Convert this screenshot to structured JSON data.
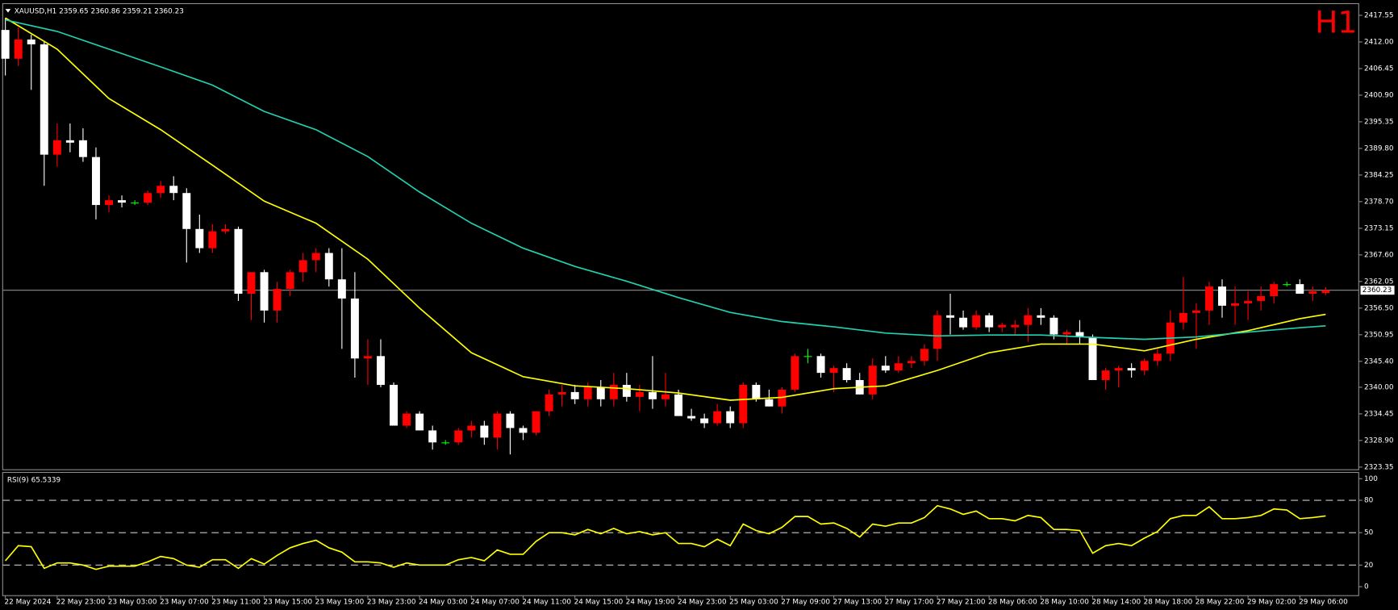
{
  "chart_data": [
    {
      "type": "candlestick",
      "title": "XAUUSD,H1",
      "badge": "H1",
      "categories": [
        "22 May 2024",
        null,
        null,
        null,
        "22 May 23:00",
        null,
        null,
        null,
        "23 May 03:00",
        null,
        null,
        null,
        "23 May 07:00",
        null,
        null,
        null,
        "23 May 11:00",
        null,
        null,
        null,
        "23 May 15:00",
        null,
        null,
        null,
        "23 May 19:00",
        null,
        null,
        null,
        "23 May 23:00",
        null,
        null,
        null,
        "24 May 03:00",
        null,
        null,
        null,
        "24 May 07:00",
        null,
        null,
        null,
        "24 May 11:00",
        null,
        null,
        null,
        "24 May 15:00",
        null,
        null,
        null,
        "24 May 19:00",
        null,
        null,
        null,
        "24 May 23:00",
        null,
        null,
        null,
        "25 May 03:00",
        null,
        null,
        null,
        "27 May 09:00",
        null,
        null,
        null,
        "27 May 13:00",
        null,
        null,
        null,
        "27 May 17:00",
        null,
        null,
        null,
        "27 May 21:00",
        null,
        null,
        null,
        "28 May 06:00",
        null,
        null,
        null,
        "28 May 10:00",
        null,
        null,
        null,
        "28 May 14:00",
        null,
        null,
        null,
        "28 May 18:00",
        null,
        null,
        null,
        "28 May 22:00",
        null,
        null,
        null,
        "29 May 02:00",
        null,
        null,
        null,
        "29 May 06:00",
        null,
        null
      ],
      "open": [
        2414.5,
        2408.5,
        2412.5,
        2411.5,
        2388.5,
        2391.5,
        2391.5,
        2388,
        2378,
        2379,
        2378.5,
        2378.5,
        2380.5,
        2382,
        2380.5,
        2373,
        2369,
        2372.5,
        2373,
        2359.5,
        2364,
        2356,
        2360.5,
        2364,
        2366.5,
        2368,
        2362.5,
        2358.5,
        2346,
        2346.5,
        2340.5,
        2332,
        2334.5,
        2331,
        2328.5,
        2328.5,
        2331,
        2332,
        2329.5,
        2334.5,
        2331.5,
        2330.5,
        2335,
        2338.5,
        2339,
        2337.5,
        2340,
        2337.5,
        2340.5,
        2338,
        2339,
        2337.5,
        2338.5,
        2334,
        2333.5,
        2332.5,
        2335,
        2332.5,
        2340.5,
        2337.5,
        2336,
        2339.5,
        2346.5,
        2346.5,
        2343,
        2344,
        2341.5,
        2338.5,
        2344.5,
        2343.5,
        2345,
        2345.5,
        2348,
        2355,
        2354.5,
        2352.5,
        2355,
        2352.5,
        2352.5,
        2353,
        2355,
        2354.5,
        2351,
        2351.5,
        2350.5,
        2341.5,
        2343.5,
        2344,
        2343.5,
        2345.5,
        2347,
        2353.5,
        2355.5,
        2356,
        2361,
        2357,
        2357.5,
        2358,
        2359,
        2361.5,
        2361.5,
        2359.5,
        2359.65
      ],
      "high": [
        2417,
        2415,
        2413.5,
        2412,
        2395,
        2395,
        2394,
        2390,
        2380,
        2380,
        2379,
        2381,
        2383,
        2384,
        2381.5,
        2376,
        2374,
        2374,
        2373.5,
        2364,
        2364.5,
        2362,
        2364.5,
        2368,
        2369,
        2369,
        2369,
        2364,
        2350,
        2350,
        2341,
        2335,
        2335,
        2332,
        2329,
        2331.5,
        2333,
        2333,
        2335,
        2335,
        2332,
        2335,
        2339.5,
        2340.5,
        2340.5,
        2341,
        2341.5,
        2343,
        2343,
        2340.5,
        2346.5,
        2343,
        2339.5,
        2335.5,
        2334.5,
        2336.5,
        2336,
        2341,
        2341,
        2339.5,
        2340,
        2347,
        2348,
        2347,
        2344.5,
        2345,
        2343,
        2346,
        2346.5,
        2346.5,
        2346.5,
        2349,
        2356,
        2359.5,
        2356,
        2356,
        2355.5,
        2353.5,
        2354,
        2356.5,
        2356.5,
        2355,
        2352,
        2354,
        2351,
        2344,
        2344.5,
        2345,
        2346,
        2348,
        2356,
        2363,
        2357.5,
        2362,
        2362.5,
        2361,
        2360,
        2361,
        2362,
        2362,
        2362.5,
        2361,
        2360.86
      ],
      "low": [
        2405,
        2407,
        2402,
        2382,
        2386,
        2389,
        2387,
        2375,
        2376.5,
        2377.5,
        2378,
        2378,
        2379.5,
        2379,
        2366,
        2368,
        2368,
        2372,
        2358,
        2354,
        2353.5,
        2353.5,
        2359,
        2362,
        2364,
        2361,
        2348,
        2342,
        2340.5,
        2340,
        2332,
        2331.5,
        2331,
        2327,
        2328,
        2328,
        2329.5,
        2328,
        2327,
        2326,
        2329,
        2330,
        2334,
        2336,
        2336.5,
        2336,
        2336,
        2336,
        2337,
        2335,
        2335.5,
        2336,
        2334,
        2333,
        2331.5,
        2332,
        2331.5,
        2331.5,
        2337,
        2336,
        2334.5,
        2339,
        2345,
        2342,
        2339,
        2341,
        2338.5,
        2337.5,
        2343,
        2343,
        2344,
        2344.5,
        2345.5,
        2351,
        2352,
        2352,
        2351.5,
        2351.5,
        2351,
        2349.5,
        2353,
        2350,
        2349,
        2349,
        2341.5,
        2339.5,
        2340,
        2342,
        2342.5,
        2344.5,
        2345.5,
        2352,
        2348,
        2353,
        2354.5,
        2353,
        2354,
        2356,
        2357.5,
        2361,
        2359.5,
        2358,
        2359.21
      ],
      "close": [
        2408.5,
        2412.5,
        2411.5,
        2388.5,
        2391.5,
        2391,
        2388,
        2378,
        2379,
        2378.5,
        2378.5,
        2380.5,
        2382,
        2380.5,
        2373,
        2369,
        2372.5,
        2373,
        2359.5,
        2364,
        2356,
        2360.5,
        2364,
        2366.5,
        2368,
        2362.5,
        2358.5,
        2346,
        2346.5,
        2340.5,
        2332,
        2334.5,
        2331,
        2328.5,
        2328.5,
        2331,
        2332,
        2329.5,
        2334.5,
        2331.5,
        2330.5,
        2335,
        2338.5,
        2339,
        2337.5,
        2340,
        2337.5,
        2340.5,
        2338,
        2339,
        2337.5,
        2338.5,
        2334,
        2333.5,
        2332.5,
        2335,
        2332.5,
        2340.5,
        2337.5,
        2336,
        2339.5,
        2346.5,
        2346.5,
        2343,
        2344,
        2341.5,
        2338.5,
        2344.5,
        2343.5,
        2345,
        2345.5,
        2348,
        2355,
        2354.5,
        2352.5,
        2355,
        2352.5,
        2353,
        2353,
        2355,
        2354.5,
        2351,
        2351.5,
        2350.5,
        2341.5,
        2343.5,
        2344,
        2343.5,
        2345.5,
        2347,
        2353.5,
        2355.5,
        2356,
        2361,
        2357,
        2357.5,
        2358,
        2359,
        2361.5,
        2361.5,
        2359.5,
        2360,
        2360.23
      ],
      "up_color": "#ff0000",
      "down_color": "#ffffff",
      "doji_color": "#00ff00",
      "price_line_color": "#8c8c8c",
      "lines": [
        {
          "color": "#ffff00",
          "x": [
            0,
            4,
            8,
            12,
            16,
            20,
            24,
            28,
            32,
            36,
            40,
            44,
            48,
            52,
            56,
            60,
            64,
            68,
            72,
            76,
            80,
            84,
            88,
            92,
            96,
            100,
            102
          ],
          "values": [
            2417.0,
            2410.5,
            2400.2,
            2393.7,
            2386.3,
            2378.8,
            2374.2,
            2366.7,
            2356.5,
            2347.2,
            2342.2,
            2340.3,
            2339.7,
            2338.8,
            2337.3,
            2337.9,
            2339.7,
            2340.3,
            2343.5,
            2347.2,
            2349.0,
            2349.0,
            2347.6,
            2350.0,
            2351.8,
            2354.3,
            2355.2
          ]
        },
        {
          "color": "#20d2b0",
          "x": [
            0,
            4,
            8,
            12,
            16,
            20,
            24,
            28,
            32,
            36,
            40,
            44,
            48,
            52,
            56,
            60,
            64,
            68,
            72,
            76,
            80,
            84,
            88,
            92,
            96,
            100,
            102
          ],
          "values": [
            2416.6,
            2414.2,
            2410.5,
            2406.8,
            2403.0,
            2397.5,
            2393.7,
            2388.1,
            2380.7,
            2374.2,
            2369.0,
            2365.2,
            2362.1,
            2358.7,
            2355.6,
            2353.7,
            2352.6,
            2351.3,
            2350.7,
            2350.9,
            2350.9,
            2350.4,
            2350.0,
            2350.5,
            2351.5,
            2352.4,
            2352.8
          ]
        }
      ],
      "ylim": [
        2322.8,
        2419.8
      ],
      "yticks": [
        2417.55,
        {
          "value": 2412,
          "label": "2412.00"
        },
        2406.45,
        {
          "value": 2400.9,
          "label": "2400.90"
        },
        2395.35,
        {
          "value": 2389.8,
          "label": "2389.80"
        },
        2384.25,
        {
          "value": 2378.7,
          "label": "2378.70"
        },
        2373.15,
        {
          "value": 2367.6,
          "label": "2367.60"
        },
        2362.05,
        {
          "value": 2356.5,
          "label": "2356.50"
        },
        2350.95,
        {
          "value": 2345.4,
          "label": "2345.40"
        },
        {
          "value": 2340,
          "label": "2340.00"
        },
        2334.45,
        {
          "value": 2328.9,
          "label": "2328.90"
        },
        2323.35
      ]
    },
    {
      "type": "line",
      "title": "RSI(9)",
      "color": "#ffff00",
      "values": [
        24,
        38,
        37,
        17,
        22,
        22,
        20,
        16,
        19,
        19,
        19,
        23,
        28,
        26,
        20,
        18,
        25,
        25,
        17,
        26,
        21,
        29,
        36,
        40,
        43,
        36,
        32,
        23,
        23,
        22,
        18,
        22,
        20,
        20,
        20,
        25,
        27,
        24,
        34,
        30,
        30,
        42,
        50,
        50,
        48,
        53,
        49,
        54,
        49,
        51,
        48,
        50,
        40,
        40,
        37,
        44,
        38,
        58,
        52,
        49,
        55,
        65,
        65,
        58,
        59,
        54,
        46,
        58,
        56,
        59,
        59,
        64,
        75,
        72,
        67,
        70,
        63,
        63,
        61,
        66,
        64,
        53,
        53,
        52,
        31,
        38,
        40,
        38,
        45,
        51,
        63,
        66,
        66,
        74,
        63,
        63,
        64,
        66,
        72,
        71,
        63,
        64,
        65.5339
      ],
      "ylim": [
        -8.3,
        105
      ],
      "yticks": [
        0,
        20,
        50,
        80,
        100
      ],
      "levels": [
        20,
        50,
        80
      ]
    }
  ]
}
